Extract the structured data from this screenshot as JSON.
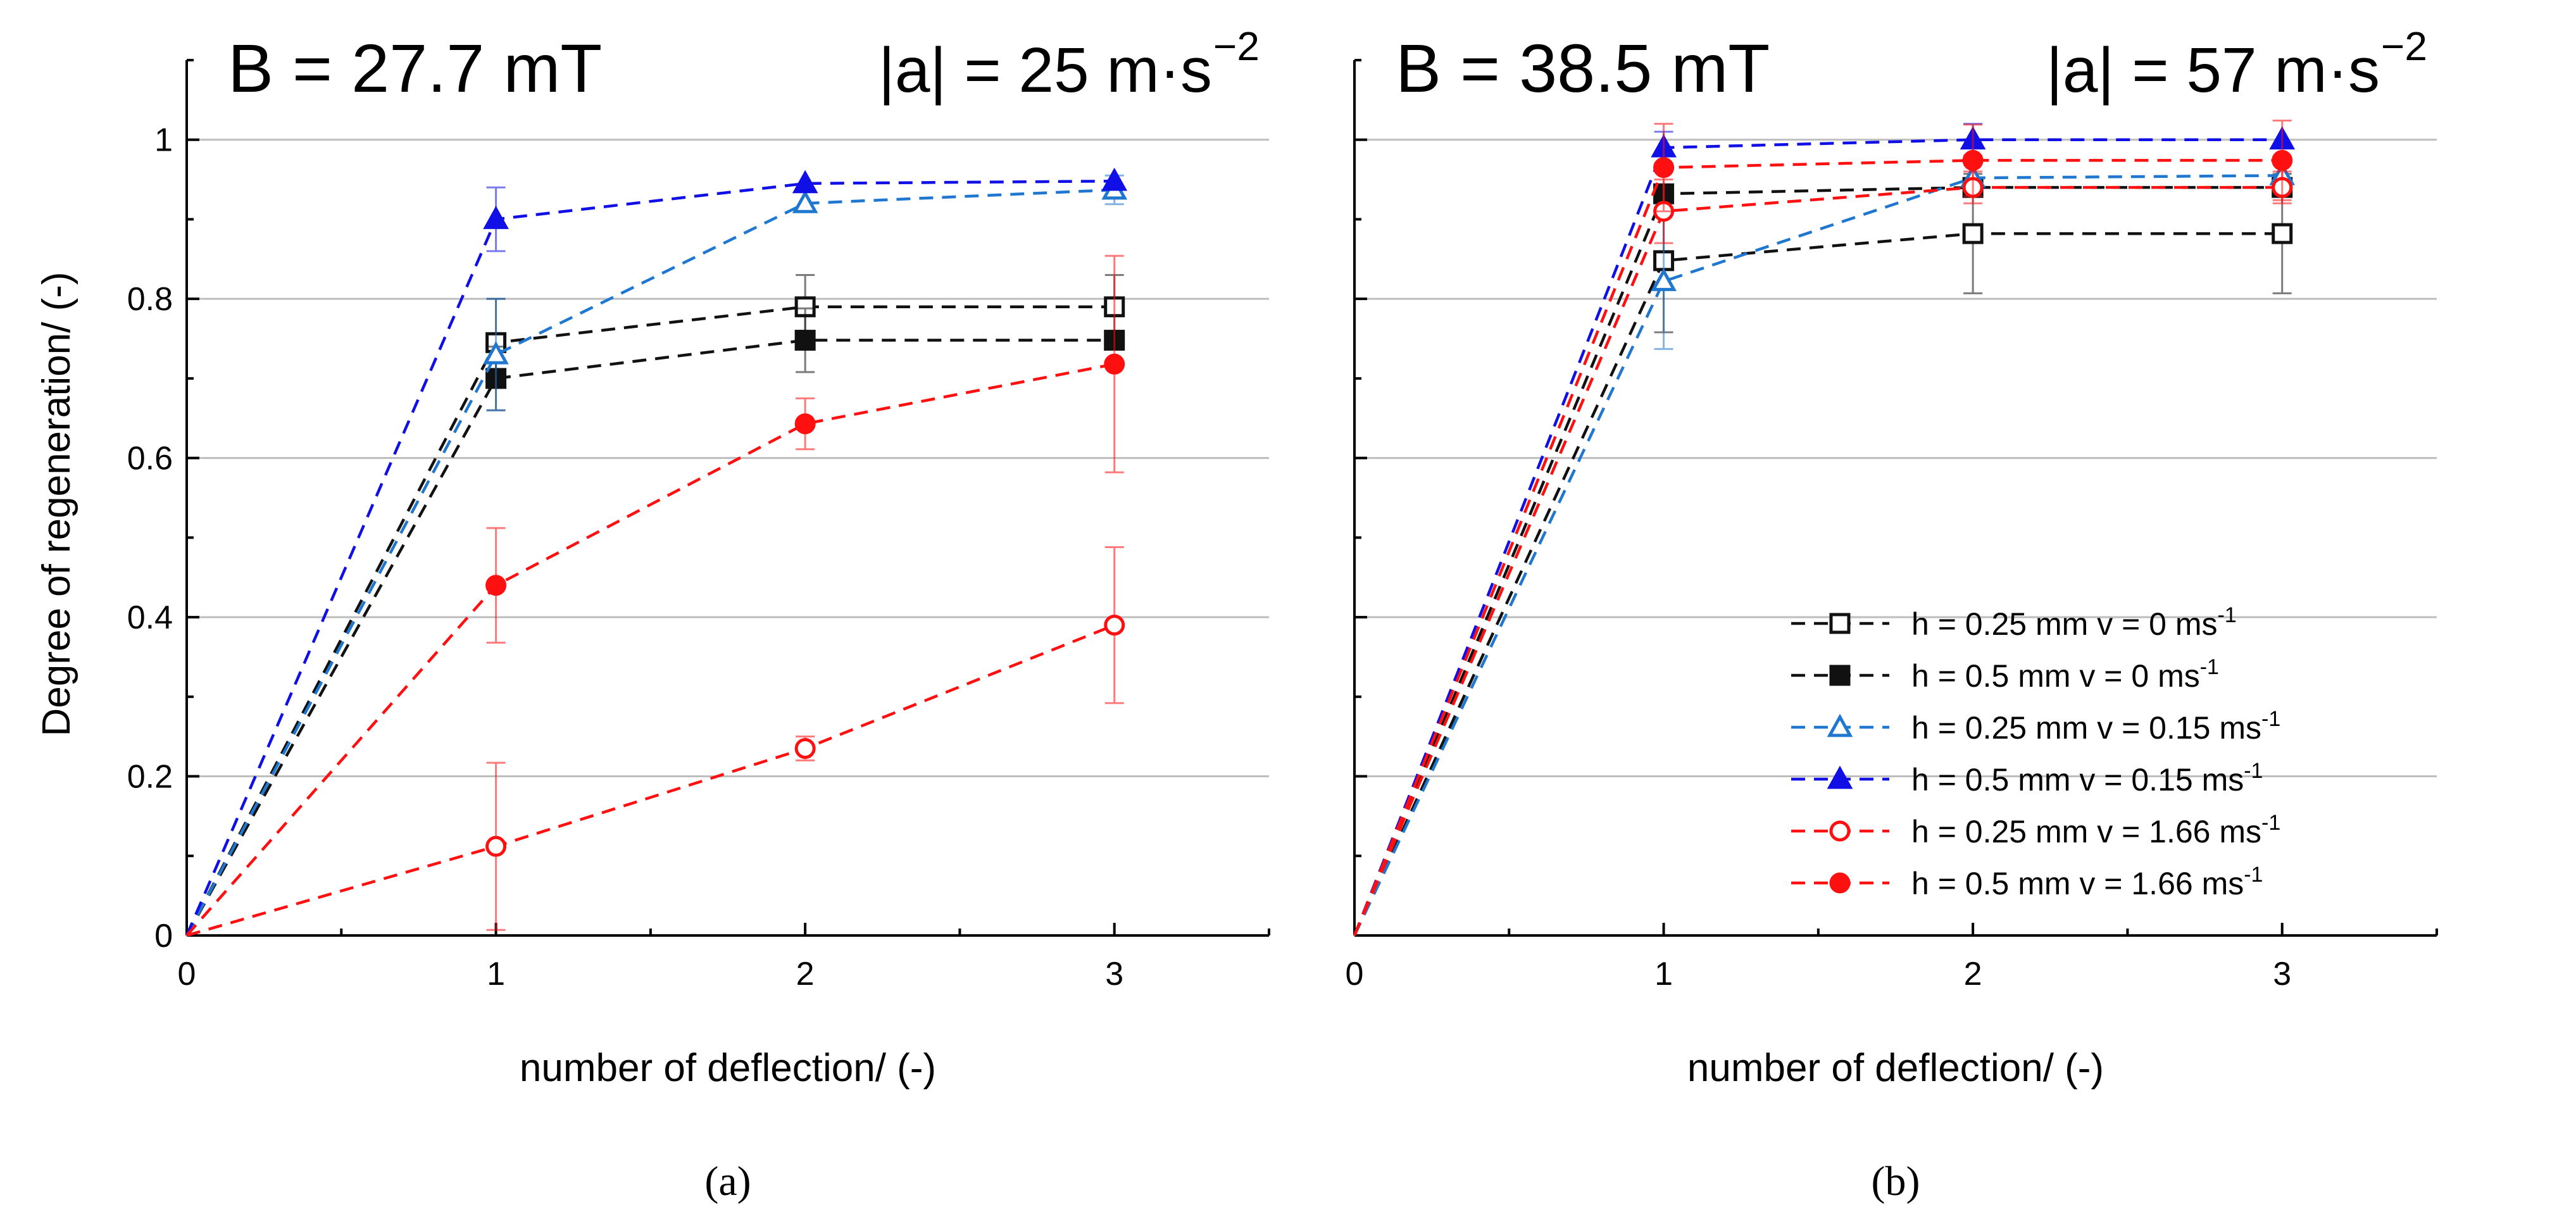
{
  "chart_data": [
    {
      "type": "line",
      "panel_label": "(a)",
      "title_left": "B = 27.7 mT",
      "title_right": "|a| = 25 m·s",
      "title_right_exp": "−2",
      "xlabel": "number of deflection/ (-)",
      "ylabel": "Degree of regeneration/ (-)",
      "xlim": [
        0,
        3.5
      ],
      "ylim": [
        0,
        1.1
      ],
      "xticks": [
        0,
        1,
        2,
        3
      ],
      "yticks": [
        0,
        0.2,
        0.4,
        0.6,
        0.8,
        1
      ],
      "ytick_labels": [
        "0",
        "0.2",
        "0.4",
        "0.6",
        "0.8",
        "1"
      ],
      "grid": "horizontal",
      "series": [
        {
          "name": "h = 0.25 mm v = 0 ms",
          "sup": "-1",
          "marker": "square",
          "filled": false,
          "color": "#111111",
          "x": [
            0,
            1,
            2,
            3
          ],
          "values": [
            0,
            0.745,
            0.79,
            0.79
          ],
          "errors": [
            0,
            0.055,
            0.04,
            0.04
          ]
        },
        {
          "name": "h = 0.5 mm v = 0 ms",
          "sup": "-1",
          "marker": "square",
          "filled": true,
          "color": "#111111",
          "x": [
            0,
            1,
            2,
            3
          ],
          "values": [
            0,
            0.7,
            0.748,
            0.748
          ],
          "errors": [
            0,
            0.04,
            0.04,
            0.0
          ]
        },
        {
          "name": "h = 0.25 mm v = 0.15 ms",
          "sup": "-1",
          "marker": "triangle",
          "filled": false,
          "color": "#1f77d0",
          "x": [
            0,
            1,
            2,
            3
          ],
          "values": [
            0,
            0.73,
            0.92,
            0.937
          ],
          "errors": [
            0,
            0.07,
            0.0,
            0.018
          ]
        },
        {
          "name": "h = 0.5 mm v = 0.15 ms",
          "sup": "-1",
          "marker": "triangle",
          "filled": true,
          "color": "#1010e6",
          "x": [
            0,
            1,
            2,
            3
          ],
          "values": [
            0,
            0.9,
            0.945,
            0.948
          ],
          "errors": [
            0,
            0.04,
            0.0,
            0.0
          ]
        },
        {
          "name": "h = 0.25 mm v = 1.66 ms",
          "sup": "-1",
          "marker": "circle",
          "filled": false,
          "color": "#ff1010",
          "x": [
            0,
            1,
            2,
            3
          ],
          "values": [
            0,
            0.112,
            0.235,
            0.39
          ],
          "errors": [
            0,
            0.105,
            0.015,
            0.098
          ]
        },
        {
          "name": "h = 0.5 mm v = 1.66 ms",
          "sup": "-1",
          "marker": "circle",
          "filled": true,
          "color": "#ff1010",
          "x": [
            0,
            1,
            2,
            3
          ],
          "values": [
            0,
            0.44,
            0.643,
            0.718
          ],
          "errors": [
            0,
            0.072,
            0.032,
            0.136
          ]
        }
      ]
    },
    {
      "type": "line",
      "panel_label": "(b)",
      "title_left": "B = 38.5 mT",
      "title_right": "|a| = 57 m·s",
      "title_right_exp": "−2",
      "xlabel": "number of deflection/ (-)",
      "ylabel": "",
      "xlim": [
        0,
        3.5
      ],
      "ylim": [
        0,
        1.1
      ],
      "xticks": [
        0,
        1,
        2,
        3
      ],
      "yticks": [
        0,
        0.2,
        0.4,
        0.6,
        0.8,
        1
      ],
      "grid": "horizontal",
      "legend": "bottom-right",
      "series": [
        {
          "name": "h = 0.25 mm v = 0 ms",
          "sup": "-1",
          "marker": "square",
          "filled": false,
          "color": "#111111",
          "x": [
            0,
            1,
            2,
            3
          ],
          "values": [
            0,
            0.848,
            0.882,
            0.882
          ],
          "errors": [
            0,
            0.09,
            0.075,
            0.075
          ]
        },
        {
          "name": "h = 0.5 mm v = 0 ms",
          "sup": "-1",
          "marker": "square",
          "filled": true,
          "color": "#111111",
          "x": [
            0,
            1,
            2,
            3
          ],
          "values": [
            0,
            0.932,
            0.94,
            0.94
          ],
          "errors": [
            0,
            0.0,
            0.0,
            0.0
          ]
        },
        {
          "name": "h = 0.25 mm v = 0.15 ms",
          "sup": "-1",
          "marker": "triangle",
          "filled": false,
          "color": "#1f77d0",
          "x": [
            0,
            1,
            2,
            3
          ],
          "values": [
            0,
            0.822,
            0.952,
            0.955
          ],
          "errors": [
            0,
            0.085,
            0.0,
            0.0
          ]
        },
        {
          "name": "h = 0.5 mm v = 0.15 ms",
          "sup": "-1",
          "marker": "triangle",
          "filled": true,
          "color": "#1010e6",
          "x": [
            0,
            1,
            2,
            3
          ],
          "values": [
            0,
            0.99,
            1.0,
            1.0
          ],
          "errors": [
            0,
            0.02,
            0.02,
            0.0
          ]
        },
        {
          "name": "h = 0.25 mm v = 1.66 ms",
          "sup": "-1",
          "marker": "circle",
          "filled": false,
          "color": "#ff1010",
          "x": [
            0,
            1,
            2,
            3
          ],
          "values": [
            0,
            0.91,
            0.94,
            0.94
          ],
          "errors": [
            0,
            0.04,
            0.02,
            0.02
          ]
        },
        {
          "name": "h = 0.5 mm v = 1.66 ms",
          "sup": "-1",
          "marker": "circle",
          "filled": true,
          "color": "#ff1010",
          "x": [
            0,
            1,
            2,
            3
          ],
          "values": [
            0,
            0.965,
            0.974,
            0.974
          ],
          "errors": [
            0,
            0.055,
            0.045,
            0.05
          ]
        }
      ]
    }
  ]
}
